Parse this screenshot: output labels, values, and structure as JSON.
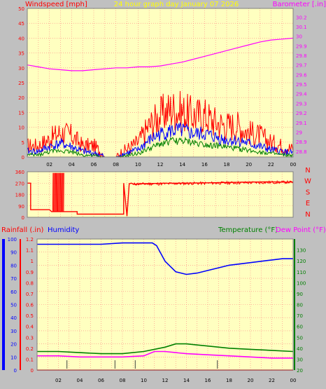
{
  "top_title": "24 hour graph day   January 07 2026",
  "chart_data": [
    {
      "type": "line",
      "left_label": "Windspeed [mph]",
      "right_label": "Barometer [.in]",
      "x_tick_labels": [
        "02",
        "04",
        "06",
        "08",
        "10",
        "12",
        "14",
        "16",
        "18",
        "20",
        "22",
        "00"
      ],
      "x_range": [
        0,
        24
      ],
      "y_left": {
        "range": [
          0,
          50
        ],
        "tick_labels": [
          "0",
          "5",
          "10",
          "15",
          "20",
          "25",
          "30",
          "35",
          "40",
          "45",
          "50"
        ]
      },
      "y_right": {
        "range": [
          28.74,
          30.29
        ],
        "tick_labels": [
          "28.8",
          "28.9",
          "29",
          "29.1",
          "29.2",
          "29.3",
          "29.4",
          "29.5",
          "29.6",
          "29.7",
          "29.8",
          "29.9",
          "30",
          "30.1",
          "30.2"
        ]
      },
      "series": [
        {
          "name": "Barometer",
          "color": "#ff00ff",
          "axis": "right",
          "x": [
            0,
            1,
            2,
            3,
            4,
            5,
            6,
            7,
            8,
            9,
            10,
            11,
            12,
            13,
            14,
            15,
            16,
            17,
            18,
            19,
            20,
            21,
            22,
            23,
            24
          ],
          "y": [
            29.7,
            29.68,
            29.66,
            29.65,
            29.64,
            29.64,
            29.65,
            29.66,
            29.67,
            29.67,
            29.68,
            29.68,
            29.69,
            29.71,
            29.73,
            29.76,
            29.79,
            29.82,
            29.85,
            29.88,
            29.91,
            29.94,
            29.96,
            29.97,
            29.98
          ]
        },
        {
          "name": "Gust",
          "color": "#ff0000",
          "axis": "left",
          "x": [
            0,
            1,
            2,
            3,
            4,
            5,
            6,
            7,
            8,
            9,
            10,
            11,
            12,
            13,
            14,
            15,
            16,
            17,
            18,
            19,
            20,
            21,
            22,
            23,
            24
          ],
          "y": [
            3,
            3,
            5,
            7,
            6,
            3,
            3,
            0,
            0,
            2,
            4,
            9,
            12,
            14,
            13,
            12,
            12,
            10,
            9,
            9,
            7,
            6,
            4,
            3,
            2
          ]
        },
        {
          "name": "Wind",
          "color": "#0000ff",
          "axis": "left",
          "x": [
            0,
            1,
            2,
            3,
            4,
            5,
            6,
            7,
            8,
            9,
            10,
            11,
            12,
            13,
            14,
            15,
            16,
            17,
            18,
            19,
            20,
            21,
            22,
            23,
            24
          ],
          "y": [
            1.5,
            1.5,
            3,
            4,
            3,
            1.5,
            1,
            0,
            0,
            1,
            2,
            5,
            7,
            8,
            8,
            7,
            7,
            6,
            5,
            5,
            4,
            3,
            2,
            1.5,
            1
          ]
        },
        {
          "name": "Average",
          "color": "#008000",
          "axis": "left",
          "x": [
            0,
            1,
            2,
            3,
            4,
            5,
            6,
            7,
            8,
            9,
            10,
            11,
            12,
            13,
            14,
            15,
            16,
            17,
            18,
            19,
            20,
            21,
            22,
            23,
            24
          ],
          "y": [
            0.5,
            0.5,
            1.5,
            2,
            1.5,
            0.5,
            0.3,
            0,
            0,
            0.3,
            1,
            2.5,
            4,
            5,
            5,
            4.5,
            4,
            3.5,
            3,
            2.5,
            2,
            1.5,
            1,
            0.5,
            0.3
          ]
        }
      ]
    },
    {
      "type": "line",
      "right_letters": [
        "N",
        "W",
        "S",
        "E",
        "N"
      ],
      "x_range": [
        0,
        24
      ],
      "y_left": {
        "range": [
          0,
          360
        ],
        "tick_labels": [
          "0",
          "90",
          "180",
          "270",
          "360"
        ]
      },
      "series": [
        {
          "name": "Wind Direction",
          "color": "#ff0000",
          "x": [
            0,
            0.3,
            0.3,
            2,
            2.2,
            3.3,
            3.5,
            4.5,
            4.5,
            7.5,
            7.5,
            8.7,
            8.7,
            9,
            9.2,
            9.4,
            9.6,
            10,
            12,
            14,
            16,
            18,
            20,
            22,
            23,
            24
          ],
          "y": [
            270,
            270,
            60,
            60,
            45,
            45,
            45,
            45,
            25,
            25,
            25,
            25,
            270,
            10,
            265,
            270,
            260,
            265,
            268,
            270,
            272,
            275,
            278,
            280,
            278,
            278
          ]
        }
      ]
    },
    {
      "type": "line",
      "left_label_a": "Rainfall (.in)",
      "left_label_b": "Humidity",
      "right_label_a": "Temperature (°F)",
      "right_label_b": "Dew Point (°F)",
      "x_tick_labels": [
        "02",
        "04",
        "06",
        "08",
        "10",
        "12",
        "14",
        "16",
        "18",
        "20",
        "22",
        "00"
      ],
      "x_range": [
        0,
        24
      ],
      "y_humidity": {
        "range": [
          0,
          100
        ],
        "tick_labels": [
          "0",
          "10",
          "20",
          "30",
          "40",
          "50",
          "60",
          "70",
          "80",
          "90",
          "100"
        ]
      },
      "y_rain": {
        "range": [
          0,
          1.2
        ],
        "tick_labels": [
          "0",
          "0.1",
          "0.2",
          "0.3",
          "0.4",
          "0.5",
          "0.6",
          "0.7",
          "0.8",
          "0.9",
          "1",
          "1.1",
          "1.2"
        ]
      },
      "y_temp": {
        "range": [
          20,
          140
        ],
        "tick_labels": [
          "20",
          "30",
          "40",
          "50",
          "60",
          "70",
          "80",
          "90",
          "100",
          "110",
          "120",
          "130"
        ]
      },
      "series": [
        {
          "name": "Humidity",
          "color": "#0000ff",
          "axis": "humidity",
          "x": [
            0,
            2,
            4,
            6,
            8,
            10,
            10.8,
            11.2,
            12,
            13,
            14,
            15,
            16,
            17,
            18,
            20,
            22,
            23,
            24
          ],
          "y": [
            96,
            96,
            96,
            96,
            97,
            97,
            97,
            95,
            83,
            75,
            73,
            74,
            76,
            78,
            80,
            82,
            84,
            85,
            85
          ]
        },
        {
          "name": "Temperature",
          "color": "#008000",
          "axis": "temp",
          "x": [
            0,
            2,
            4,
            6,
            8,
            10,
            12,
            13,
            14,
            15,
            16,
            18,
            20,
            22,
            24
          ],
          "y": [
            37,
            37,
            36,
            35,
            35,
            37,
            41,
            44,
            44,
            43,
            42,
            40,
            39,
            38,
            37
          ]
        },
        {
          "name": "Dew Point",
          "color": "#ff00ff",
          "axis": "temp",
          "x": [
            0,
            2,
            4,
            6,
            8,
            10,
            11,
            12,
            13,
            14,
            16,
            18,
            20,
            22,
            24
          ],
          "y": [
            33,
            33,
            32,
            32,
            32,
            33,
            37,
            37,
            36,
            35,
            34,
            33,
            32,
            31,
            31
          ]
        },
        {
          "name": "Rainfall",
          "color": "#ff0000",
          "axis": "rain",
          "x": [
            0,
            24
          ],
          "y": [
            0,
            0
          ]
        }
      ]
    }
  ]
}
